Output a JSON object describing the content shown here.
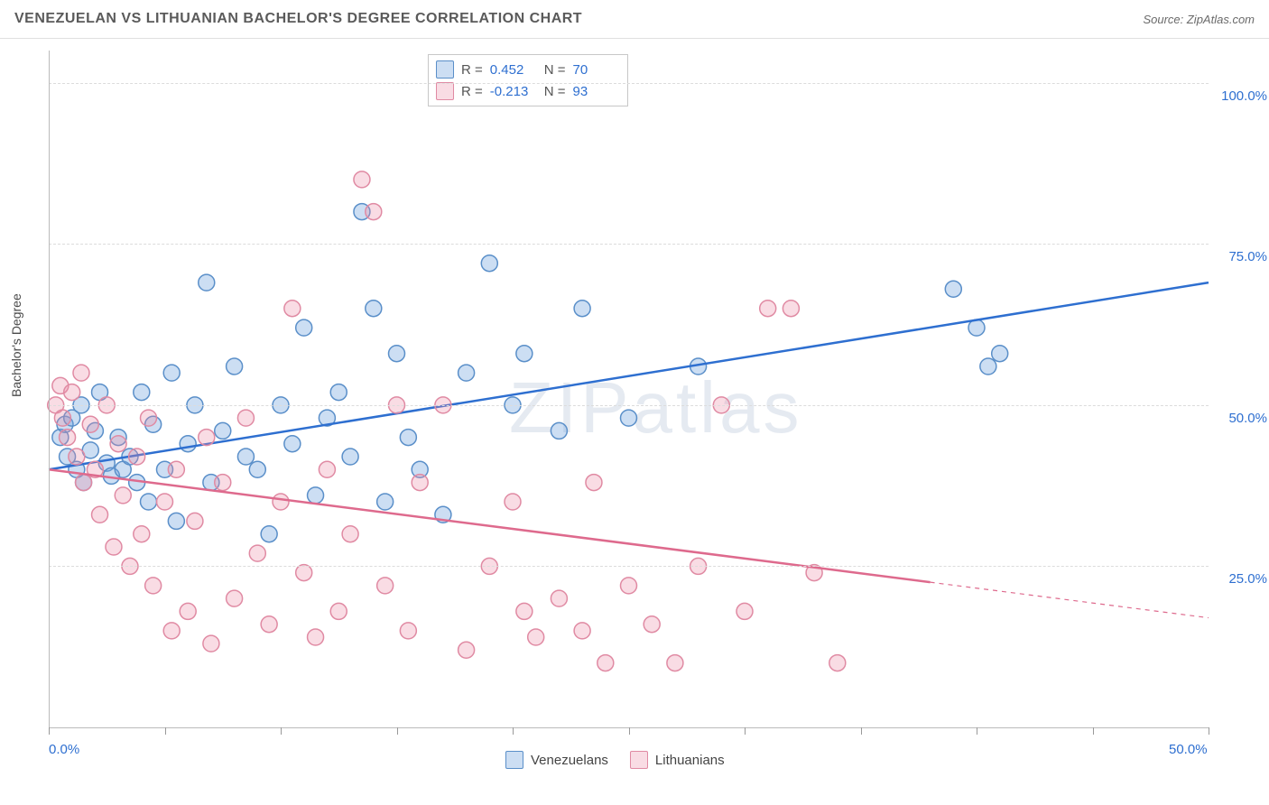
{
  "header": {
    "title": "VENEZUELAN VS LITHUANIAN BACHELOR'S DEGREE CORRELATION CHART",
    "source": "Source: ZipAtlas.com"
  },
  "watermark": "ZIPatlas",
  "chart": {
    "type": "scatter",
    "y_axis_title": "Bachelor's Degree",
    "xlim": [
      0,
      50
    ],
    "ylim": [
      0,
      105
    ],
    "x_ticks": [
      0,
      5,
      10,
      15,
      20,
      25,
      30,
      35,
      40,
      45,
      50
    ],
    "x_tick_labels": {
      "0": "0.0%",
      "50": "50.0%"
    },
    "y_ticks": [
      25,
      50,
      75,
      100
    ],
    "y_tick_labels": {
      "25": "25.0%",
      "50": "50.0%",
      "75": "75.0%",
      "100": "100.0%"
    },
    "background_color": "#ffffff",
    "grid_color": "#dcdcdc",
    "axis_label_color": "#2e6fd0",
    "marker_radius": 9,
    "marker_stroke_width": 1.5,
    "line_width_trend": 2.5,
    "series": [
      {
        "name": "Venezuelans",
        "color_fill": "rgba(108,160,220,0.35)",
        "color_stroke": "#5a8fc9",
        "line_color": "#2e6fd0",
        "R": "0.452",
        "N": "70",
        "trend_line": {
          "x1": 0,
          "y1": 40,
          "x2": 50,
          "y2": 69,
          "dash_after_x": null
        },
        "points": [
          [
            0.5,
            45
          ],
          [
            0.7,
            47
          ],
          [
            0.8,
            42
          ],
          [
            1.0,
            48
          ],
          [
            1.2,
            40
          ],
          [
            1.4,
            50
          ],
          [
            1.5,
            38
          ],
          [
            1.8,
            43
          ],
          [
            2.0,
            46
          ],
          [
            2.2,
            52
          ],
          [
            2.5,
            41
          ],
          [
            2.7,
            39
          ],
          [
            3.0,
            45
          ],
          [
            3.2,
            40
          ],
          [
            3.5,
            42
          ],
          [
            3.8,
            38
          ],
          [
            4.0,
            52
          ],
          [
            4.3,
            35
          ],
          [
            4.5,
            47
          ],
          [
            5.0,
            40
          ],
          [
            5.3,
            55
          ],
          [
            5.5,
            32
          ],
          [
            6.0,
            44
          ],
          [
            6.3,
            50
          ],
          [
            6.8,
            69
          ],
          [
            7.0,
            38
          ],
          [
            7.5,
            46
          ],
          [
            8.0,
            56
          ],
          [
            8.5,
            42
          ],
          [
            9.0,
            40
          ],
          [
            9.5,
            30
          ],
          [
            10.0,
            50
          ],
          [
            10.5,
            44
          ],
          [
            11.0,
            62
          ],
          [
            11.5,
            36
          ],
          [
            12.0,
            48
          ],
          [
            12.5,
            52
          ],
          [
            13.0,
            42
          ],
          [
            13.5,
            80
          ],
          [
            14.0,
            65
          ],
          [
            14.5,
            35
          ],
          [
            15.0,
            58
          ],
          [
            15.5,
            45
          ],
          [
            16.0,
            40
          ],
          [
            17.0,
            33
          ],
          [
            18.0,
            55
          ],
          [
            19.0,
            72
          ],
          [
            20.0,
            50
          ],
          [
            20.5,
            58
          ],
          [
            22.0,
            46
          ],
          [
            23.0,
            65
          ],
          [
            25.0,
            48
          ],
          [
            28.0,
            56
          ],
          [
            39.0,
            68
          ],
          [
            40.0,
            62
          ],
          [
            40.5,
            56
          ],
          [
            41.0,
            58
          ]
        ]
      },
      {
        "name": "Lithuanians",
        "color_fill": "rgba(235,140,165,0.30)",
        "color_stroke": "#e08aa3",
        "line_color": "#de6a8d",
        "R": "-0.213",
        "N": "93",
        "trend_line": {
          "x1": 0,
          "y1": 40,
          "x2": 50,
          "y2": 17,
          "dash_after_x": 38
        },
        "points": [
          [
            0.3,
            50
          ],
          [
            0.5,
            53
          ],
          [
            0.6,
            48
          ],
          [
            0.8,
            45
          ],
          [
            1.0,
            52
          ],
          [
            1.2,
            42
          ],
          [
            1.4,
            55
          ],
          [
            1.5,
            38
          ],
          [
            1.8,
            47
          ],
          [
            2.0,
            40
          ],
          [
            2.2,
            33
          ],
          [
            2.5,
            50
          ],
          [
            2.8,
            28
          ],
          [
            3.0,
            44
          ],
          [
            3.2,
            36
          ],
          [
            3.5,
            25
          ],
          [
            3.8,
            42
          ],
          [
            4.0,
            30
          ],
          [
            4.3,
            48
          ],
          [
            4.5,
            22
          ],
          [
            5.0,
            35
          ],
          [
            5.3,
            15
          ],
          [
            5.5,
            40
          ],
          [
            6.0,
            18
          ],
          [
            6.3,
            32
          ],
          [
            6.8,
            45
          ],
          [
            7.0,
            13
          ],
          [
            7.5,
            38
          ],
          [
            8.0,
            20
          ],
          [
            8.5,
            48
          ],
          [
            9.0,
            27
          ],
          [
            9.5,
            16
          ],
          [
            10.0,
            35
          ],
          [
            10.5,
            65
          ],
          [
            11.0,
            24
          ],
          [
            11.5,
            14
          ],
          [
            12.0,
            40
          ],
          [
            12.5,
            18
          ],
          [
            13.0,
            30
          ],
          [
            13.5,
            85
          ],
          [
            14.0,
            80
          ],
          [
            14.5,
            22
          ],
          [
            15.0,
            50
          ],
          [
            15.5,
            15
          ],
          [
            16.0,
            38
          ],
          [
            17.0,
            50
          ],
          [
            18.0,
            12
          ],
          [
            19.0,
            25
          ],
          [
            20.0,
            35
          ],
          [
            20.5,
            18
          ],
          [
            21.0,
            14
          ],
          [
            22.0,
            20
          ],
          [
            23.0,
            15
          ],
          [
            23.5,
            38
          ],
          [
            24.0,
            10
          ],
          [
            25.0,
            22
          ],
          [
            26.0,
            16
          ],
          [
            27.0,
            10
          ],
          [
            28.0,
            25
          ],
          [
            29.0,
            50
          ],
          [
            30.0,
            18
          ],
          [
            31.0,
            65
          ],
          [
            32.0,
            65
          ],
          [
            33.0,
            24
          ],
          [
            34.0,
            10
          ]
        ]
      }
    ]
  },
  "legend_bottom": {
    "items": [
      "Venezuelans",
      "Lithuanians"
    ]
  }
}
